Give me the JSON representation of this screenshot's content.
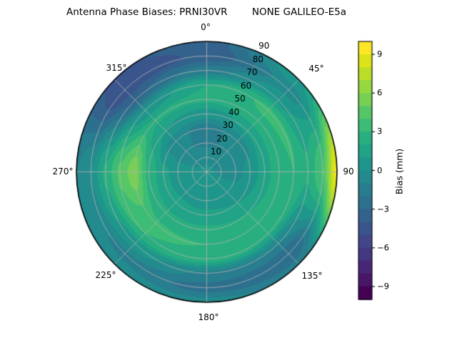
{
  "title": "Antenna Phase Biases: PRNI30VR        NONE GALILEO-E5a",
  "chart_data": {
    "type": "heatmap",
    "projection": "polar",
    "title": "Antenna Phase Biases: PRNI30VR        NONE GALILEO-E5a",
    "azimuth_deg": [
      0,
      45,
      90,
      135,
      180,
      225,
      270,
      315
    ],
    "zenith_deg": [
      0,
      10,
      20,
      30,
      40,
      50,
      60,
      70,
      80,
      90
    ],
    "bias_mm_grid": [
      [
        0.2,
        -0.3,
        -1.2,
        -1.5,
        0.5,
        2.2,
        2.0,
        -1.5,
        -3.8,
        -3.5
      ],
      [
        0.2,
        -0.3,
        -0.8,
        -0.5,
        1.2,
        2.8,
        3.2,
        0.8,
        -0.5,
        0.8
      ],
      [
        0.2,
        -0.2,
        -0.3,
        0.3,
        1.5,
        2.8,
        3.0,
        2.2,
        4.0,
        9.3
      ],
      [
        0.2,
        0.2,
        0.5,
        1.0,
        2.0,
        2.8,
        2.2,
        -1.0,
        -3.0,
        -1.6
      ],
      [
        0.2,
        0.4,
        0.6,
        1.2,
        2.2,
        3.0,
        2.6,
        -1.2,
        -2.4,
        -0.5
      ],
      [
        0.2,
        0.4,
        0.8,
        1.2,
        2.2,
        3.2,
        3.0,
        0.5,
        -1.2,
        -0.5
      ],
      [
        0.2,
        0.2,
        0.6,
        1.2,
        2.8,
        5.6,
        4.2,
        2.2,
        0.0,
        -1.0
      ],
      [
        0.2,
        -0.2,
        -0.9,
        -0.6,
        1.0,
        2.2,
        0.2,
        -3.2,
        -5.0,
        -4.2
      ]
    ],
    "theta_tick_labels": [
      "0°",
      "45°",
      "90",
      "135°",
      "180°",
      "225°",
      "270°",
      "315°"
    ],
    "r_tick_labels": [
      "10",
      "20",
      "30",
      "40",
      "50",
      "60",
      "70",
      "80",
      "90"
    ],
    "r_tick_values": [
      10,
      20,
      30,
      40,
      50,
      60,
      70,
      80,
      90
    ],
    "grid": true,
    "grid_color": "#b0b0b0",
    "outline_color": "#000000",
    "colorbar": {
      "label": "Bias (mm)",
      "tick_labels": [
        "9",
        "6",
        "3",
        "0",
        "−3",
        "−6",
        "−9"
      ],
      "tick_values": [
        9,
        6,
        3,
        0,
        -3,
        -6,
        -9
      ],
      "vmin": -10,
      "vmax": 10,
      "levels": 20,
      "colormap": "viridis",
      "colors": [
        "#440154",
        "#481567",
        "#482677",
        "#453781",
        "#404688",
        "#39558C",
        "#33638D",
        "#2D708E",
        "#287D8E",
        "#238A8D",
        "#1F968B",
        "#20A386",
        "#29AF7F",
        "#3CBC75",
        "#56C667",
        "#75D054",
        "#95D840",
        "#BADE28",
        "#DCE318",
        "#FDE725"
      ]
    }
  }
}
